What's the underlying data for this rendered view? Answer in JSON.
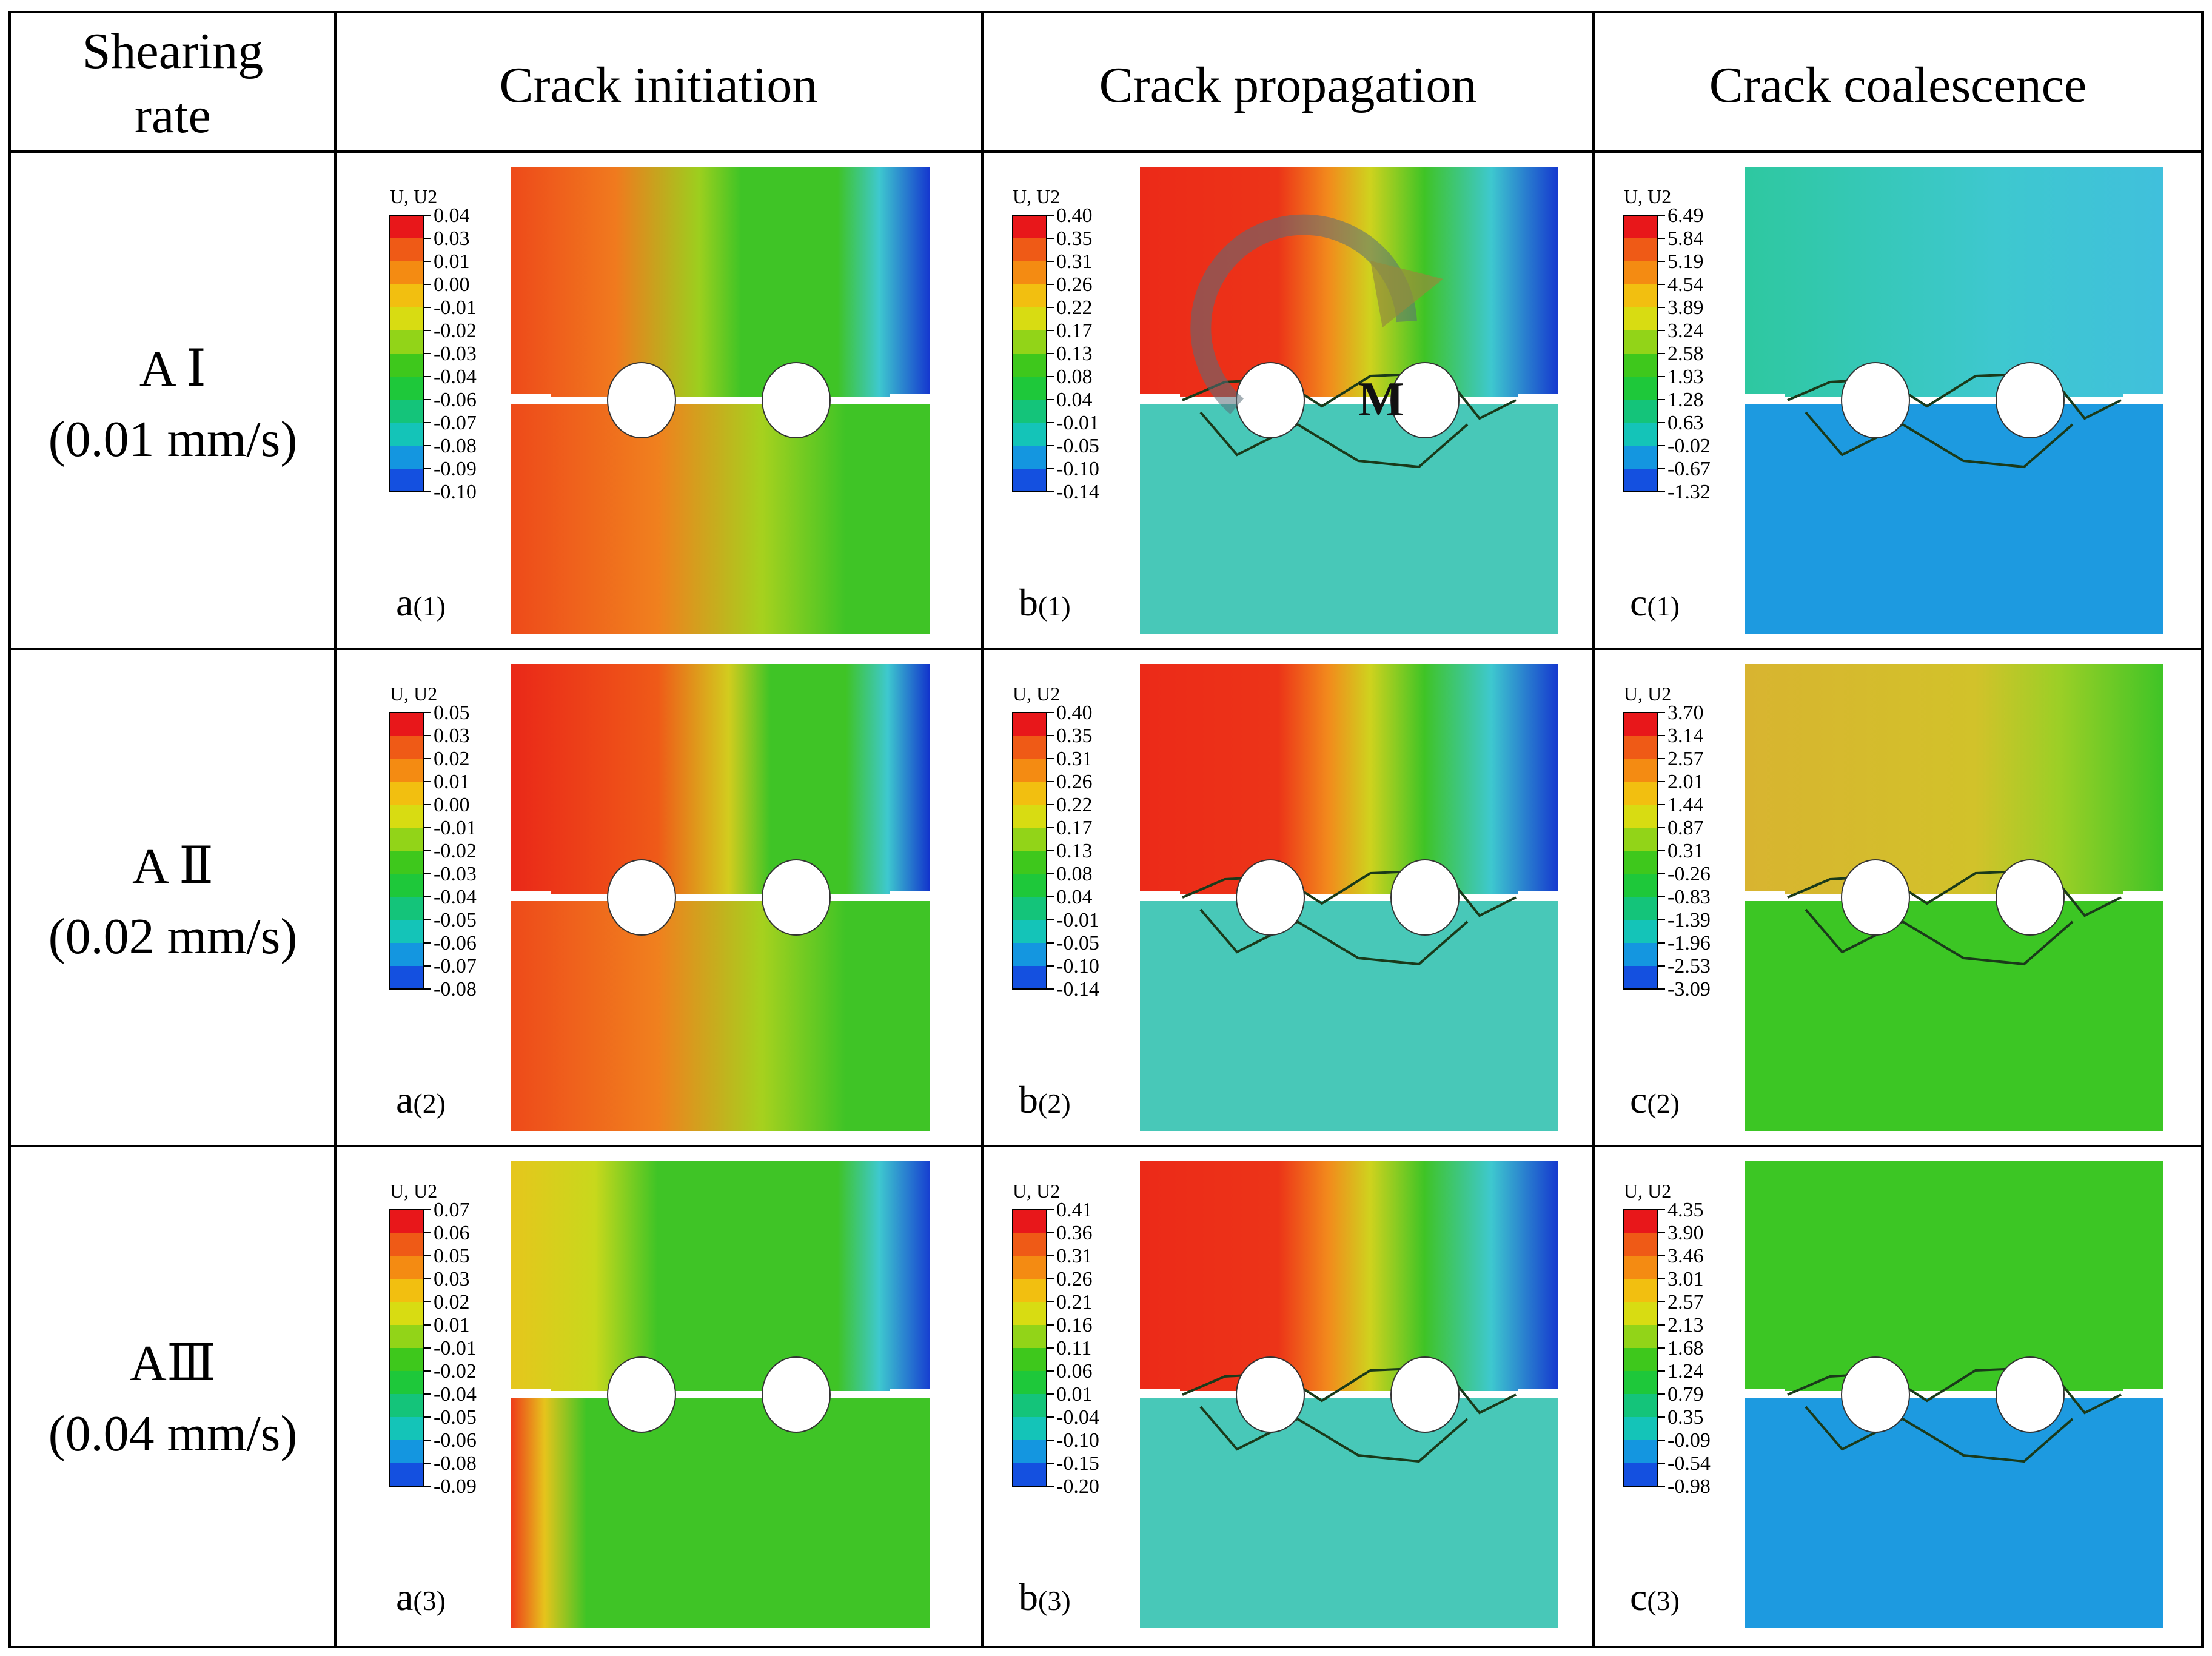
{
  "header": {
    "rate_line1": "Shearing",
    "rate_line2": "rate",
    "col1": "Crack initiation",
    "col2": "Crack propagation",
    "col3": "Crack coalescence"
  },
  "rows": [
    {
      "name_roman": "A Ⅰ",
      "rate": "(0.01 mm/s)"
    },
    {
      "name_roman": "A Ⅱ",
      "rate": "(0.02 mm/s)"
    },
    {
      "name_roman": "AⅢ",
      "rate": "(0.04 mm/s)"
    }
  ],
  "legend_title": "U, U2",
  "moment_label": "M",
  "panels": [
    {
      "id": "a1",
      "label_letter": "a",
      "label_index": "(1)",
      "stage": "initiation",
      "legend": [
        "0.04",
        "0.03",
        "0.01",
        "0.00",
        "-0.01",
        "-0.02",
        "-0.03",
        "-0.04",
        "-0.06",
        "-0.07",
        "-0.08",
        "-0.09",
        "-0.10"
      ]
    },
    {
      "id": "b1",
      "label_letter": "b",
      "label_index": "(1)",
      "stage": "propagation",
      "legend": [
        "0.40",
        "0.35",
        "0.31",
        "0.26",
        "0.22",
        "0.17",
        "0.13",
        "0.08",
        "0.04",
        "-0.01",
        "-0.05",
        "-0.10",
        "-0.14"
      ]
    },
    {
      "id": "c1",
      "label_letter": "c",
      "label_index": "(1)",
      "stage": "coalescence",
      "legend": [
        "6.49",
        "5.84",
        "5.19",
        "4.54",
        "3.89",
        "3.24",
        "2.58",
        "1.93",
        "1.28",
        "0.63",
        "-0.02",
        "-0.67",
        "-1.32"
      ]
    },
    {
      "id": "a2",
      "label_letter": "a",
      "label_index": "(2)",
      "stage": "initiation",
      "legend": [
        "0.05",
        "0.03",
        "0.02",
        "0.01",
        "0.00",
        "-0.01",
        "-0.02",
        "-0.03",
        "-0.04",
        "-0.05",
        "-0.06",
        "-0.07",
        "-0.08"
      ]
    },
    {
      "id": "b2",
      "label_letter": "b",
      "label_index": "(2)",
      "stage": "propagation",
      "legend": [
        "0.40",
        "0.35",
        "0.31",
        "0.26",
        "0.22",
        "0.17",
        "0.13",
        "0.08",
        "0.04",
        "-0.01",
        "-0.05",
        "-0.10",
        "-0.14"
      ]
    },
    {
      "id": "c2",
      "label_letter": "c",
      "label_index": "(2)",
      "stage": "coalescence",
      "legend": [
        "3.70",
        "3.14",
        "2.57",
        "2.01",
        "1.44",
        "0.87",
        "0.31",
        "-0.26",
        "-0.83",
        "-1.39",
        "-1.96",
        "-2.53",
        "-3.09"
      ]
    },
    {
      "id": "a3",
      "label_letter": "a",
      "label_index": "(3)",
      "stage": "initiation",
      "legend": [
        "0.07",
        "0.06",
        "0.05",
        "0.03",
        "0.02",
        "0.01",
        "-0.01",
        "-0.02",
        "-0.04",
        "-0.05",
        "-0.06",
        "-0.08",
        "-0.09"
      ]
    },
    {
      "id": "b3",
      "label_letter": "b",
      "label_index": "(3)",
      "stage": "propagation",
      "legend": [
        "0.41",
        "0.36",
        "0.31",
        "0.26",
        "0.21",
        "0.16",
        "0.11",
        "0.06",
        "0.01",
        "-0.04",
        "-0.10",
        "-0.15",
        "-0.20"
      ]
    },
    {
      "id": "c3",
      "label_letter": "c",
      "label_index": "(3)",
      "stage": "coalescence",
      "legend": [
        "4.35",
        "3.90",
        "3.46",
        "3.01",
        "2.57",
        "2.13",
        "1.68",
        "1.24",
        "0.79",
        "0.35",
        "-0.09",
        "-0.54",
        "-0.98"
      ]
    }
  ],
  "legend_colors": [
    "#e8171a",
    "#ef5a16",
    "#f48b12",
    "#f2bf10",
    "#d8dc12",
    "#92d418",
    "#3ec81c",
    "#1ec83a",
    "#14c47a",
    "#14c4b8",
    "#1496e0",
    "#1450e0",
    "#1212d8"
  ],
  "palette": {
    "red": "#ee3a1c",
    "orange": "#f08020",
    "yellow": "#d6d21c",
    "green": "#3cc624",
    "cyan": "#3ec8d2",
    "blue": "#1740d0",
    "deep_blue": "#2a8ed6",
    "mid_blue": "#1d9ae0",
    "teal": "#48c8b8",
    "ochre": "#d8b430"
  }
}
